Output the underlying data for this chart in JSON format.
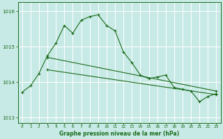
{
  "title": "Graphe pression niveau de la mer (hPa)",
  "background_color": "#c8eae6",
  "grid_color": "#ffffff",
  "line_color": "#1a6b1a",
  "xlim": [
    -0.5,
    23.5
  ],
  "ylim": [
    1012.85,
    1016.25
  ],
  "yticks": [
    1013,
    1014,
    1015,
    1016
  ],
  "xticks": [
    0,
    1,
    2,
    3,
    4,
    5,
    6,
    7,
    8,
    9,
    10,
    11,
    12,
    13,
    14,
    15,
    16,
    17,
    18,
    19,
    20,
    21,
    22,
    23
  ],
  "line1_x": [
    0,
    1,
    2,
    3,
    4,
    5,
    6,
    7,
    8,
    9,
    10,
    11,
    12,
    13,
    14,
    15,
    16,
    17,
    18,
    19,
    20,
    21,
    22,
    23
  ],
  "line1_y": [
    1013.72,
    1013.9,
    1014.25,
    1014.75,
    1015.1,
    1015.6,
    1015.38,
    1015.75,
    1015.85,
    1015.9,
    1015.6,
    1015.45,
    1014.85,
    1014.55,
    1014.2,
    1014.1,
    1014.15,
    1014.2,
    1013.85,
    1013.8,
    1013.75,
    1013.45,
    1013.6,
    1013.68
  ],
  "line2_x": [
    3,
    23
  ],
  "line2_y": [
    1014.7,
    1013.75
  ],
  "line3_x": [
    3,
    23
  ],
  "line3_y": [
    1014.35,
    1013.65
  ]
}
